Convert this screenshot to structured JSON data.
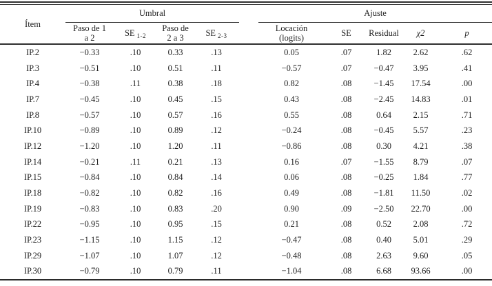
{
  "table": {
    "headers": {
      "item": "Ítem",
      "umbral": "Umbral",
      "ajuste": "Ajuste",
      "paso12": {
        "line1": "Paso de 1",
        "line2": "a 2"
      },
      "se12": {
        "base": "SE",
        "sub": "1-2"
      },
      "paso23": {
        "line1": "Paso de",
        "line2": "2 a 3"
      },
      "se23": {
        "base": "SE",
        "sub": "2-3"
      },
      "loc": {
        "line1": "Locación",
        "line2": "(logits)"
      },
      "se": "SE",
      "residual": "Residual",
      "chi2": "χ2",
      "p": "p"
    },
    "rows": [
      {
        "item": "IP.2",
        "paso12": "−0.33",
        "se12": ".10",
        "paso23": "0.33",
        "se23": ".13",
        "loc": "0.05",
        "se": ".07",
        "residual": "1.82",
        "chi2": "2.62",
        "p": ".62"
      },
      {
        "item": "IP.3",
        "paso12": "−0.51",
        "se12": ".10",
        "paso23": "0.51",
        "se23": ".11",
        "loc": "−0.57",
        "se": ".07",
        "residual": "−0.47",
        "chi2": "3.95",
        "p": ".41"
      },
      {
        "item": "IP.4",
        "paso12": "−0.38",
        "se12": ".11",
        "paso23": "0.38",
        "se23": ".18",
        "loc": "0.82",
        "se": ".08",
        "residual": "−1.45",
        "chi2": "17.54",
        "p": ".00"
      },
      {
        "item": "IP.7",
        "paso12": "−0.45",
        "se12": ".10",
        "paso23": "0.45",
        "se23": ".15",
        "loc": "0.43",
        "se": ".08",
        "residual": "−2.45",
        "chi2": "14.83",
        "p": ".01"
      },
      {
        "item": "IP.8",
        "paso12": "−0.57",
        "se12": ".10",
        "paso23": "0.57",
        "se23": ".16",
        "loc": "0.55",
        "se": ".08",
        "residual": "0.64",
        "chi2": "2.15",
        "p": ".71"
      },
      {
        "item": "IP.10",
        "paso12": "−0.89",
        "se12": ".10",
        "paso23": "0.89",
        "se23": ".12",
        "loc": "−0.24",
        "se": ".08",
        "residual": "−0.45",
        "chi2": "5.57",
        "p": ".23"
      },
      {
        "item": "IP.12",
        "paso12": "−1.20",
        "se12": ".10",
        "paso23": "1.20",
        "se23": ".11",
        "loc": "−0.86",
        "se": ".08",
        "residual": "0.30",
        "chi2": "4.21",
        "p": ".38"
      },
      {
        "item": "IP.14",
        "paso12": "−0.21",
        "se12": ".11",
        "paso23": "0.21",
        "se23": ".13",
        "loc": "0.16",
        "se": ".07",
        "residual": "−1.55",
        "chi2": "8.79",
        "p": ".07"
      },
      {
        "item": "IP.15",
        "paso12": "−0.84",
        "se12": ".10",
        "paso23": "0.84",
        "se23": ".14",
        "loc": "0.06",
        "se": ".08",
        "residual": "−0.25",
        "chi2": "1.84",
        "p": ".77"
      },
      {
        "item": "IP.18",
        "paso12": "−0.82",
        "se12": ".10",
        "paso23": "0.82",
        "se23": ".16",
        "loc": "0.49",
        "se": ".08",
        "residual": "−1.81",
        "chi2": "11.50",
        "p": ".02"
      },
      {
        "item": "IP.19",
        "paso12": "−0.83",
        "se12": ".10",
        "paso23": "0.83",
        "se23": ".20",
        "loc": "0.90",
        "se": ".09",
        "residual": "−2.50",
        "chi2": "22.70",
        "p": ".00"
      },
      {
        "item": "IP.22",
        "paso12": "−0.95",
        "se12": ".10",
        "paso23": "0.95",
        "se23": ".15",
        "loc": "0.21",
        "se": ".08",
        "residual": "0.52",
        "chi2": "2.08",
        "p": ".72"
      },
      {
        "item": "IP.23",
        "paso12": "−1.15",
        "se12": ".10",
        "paso23": "1.15",
        "se23": ".12",
        "loc": "−0.47",
        "se": ".08",
        "residual": "0.40",
        "chi2": "5.01",
        "p": ".29"
      },
      {
        "item": "IP.29",
        "paso12": "−1.07",
        "se12": ".10",
        "paso23": "1.07",
        "se23": ".12",
        "loc": "−0.48",
        "se": ".08",
        "residual": "2.63",
        "chi2": "9.60",
        "p": ".05"
      },
      {
        "item": "IP.30",
        "paso12": "−0.79",
        "se12": ".10",
        "paso23": "0.79",
        "se23": ".11",
        "loc": "−1.04",
        "se": ".08",
        "residual": "6.68",
        "chi2": "93.66",
        "p": ".00"
      }
    ]
  },
  "colors": {
    "text": "#1f1f1f",
    "rule": "#2e2e2e",
    "background": "#ffffff"
  }
}
